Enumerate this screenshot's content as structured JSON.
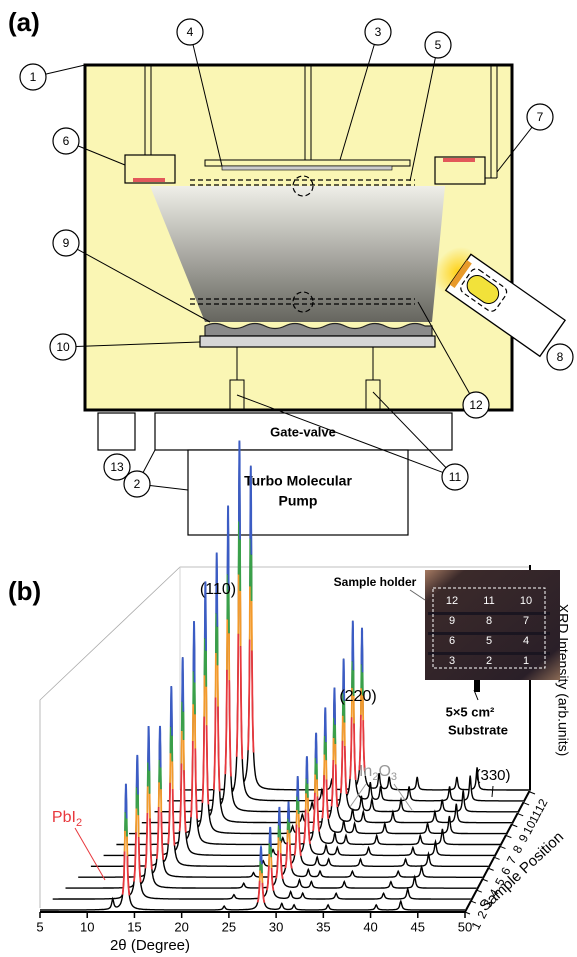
{
  "panel_a": {
    "label": "(a)",
    "callouts": [
      1,
      2,
      3,
      4,
      5,
      6,
      7,
      8,
      9,
      10,
      11,
      12,
      13
    ],
    "gate_valve": "Gate-valve",
    "pump": [
      "Turbo Molecular",
      "Pump"
    ]
  },
  "chart_data": {
    "type": "waterfall",
    "panel_label": "(b)",
    "xlabel": "2θ (Degree)",
    "ylabel": "XRD Intensity (arb.units)",
    "zlabel": "Sample Position",
    "xlim": [
      5,
      50
    ],
    "xticks": [
      5,
      10,
      15,
      20,
      25,
      30,
      35,
      40,
      45,
      50
    ],
    "positions": [
      1,
      2,
      3,
      4,
      5,
      6,
      7,
      8,
      9,
      10,
      11,
      12
    ],
    "position_intensity": [
      0.35,
      0.4,
      0.45,
      0.42,
      0.5,
      0.55,
      0.62,
      0.7,
      0.75,
      0.85,
      1.0,
      0.9
    ],
    "peaks": [
      {
        "x": 12.7,
        "intensity": 0.08
      },
      {
        "x": 14.1,
        "intensity": 1.0
      },
      {
        "x": 24.5,
        "intensity": 0.03
      },
      {
        "x": 28.4,
        "intensity": 0.5
      },
      {
        "x": 30.6,
        "intensity": 0.05
      },
      {
        "x": 31.9,
        "intensity": 0.04
      },
      {
        "x": 35.5,
        "intensity": 0.04
      },
      {
        "x": 40.6,
        "intensity": 0.04
      },
      {
        "x": 43.2,
        "intensity": 0.07
      }
    ],
    "band_colors": [
      "#e8383d",
      "#f39a2b",
      "#3aa04a",
      "#3b5cc4"
    ],
    "annotations": {
      "p110": "(110)",
      "p220": "(220)",
      "p330": "(330)",
      "pbi2": [
        "PbI",
        "2"
      ],
      "in2o3": [
        "In",
        "2",
        "O",
        "3"
      ]
    },
    "inset": {
      "title": "Sample holder",
      "size": "5×5 cm²",
      "substrate": "Substrate",
      "grid": [
        12,
        11,
        10,
        9,
        8,
        7,
        6,
        5,
        4,
        3,
        2,
        1
      ]
    }
  }
}
